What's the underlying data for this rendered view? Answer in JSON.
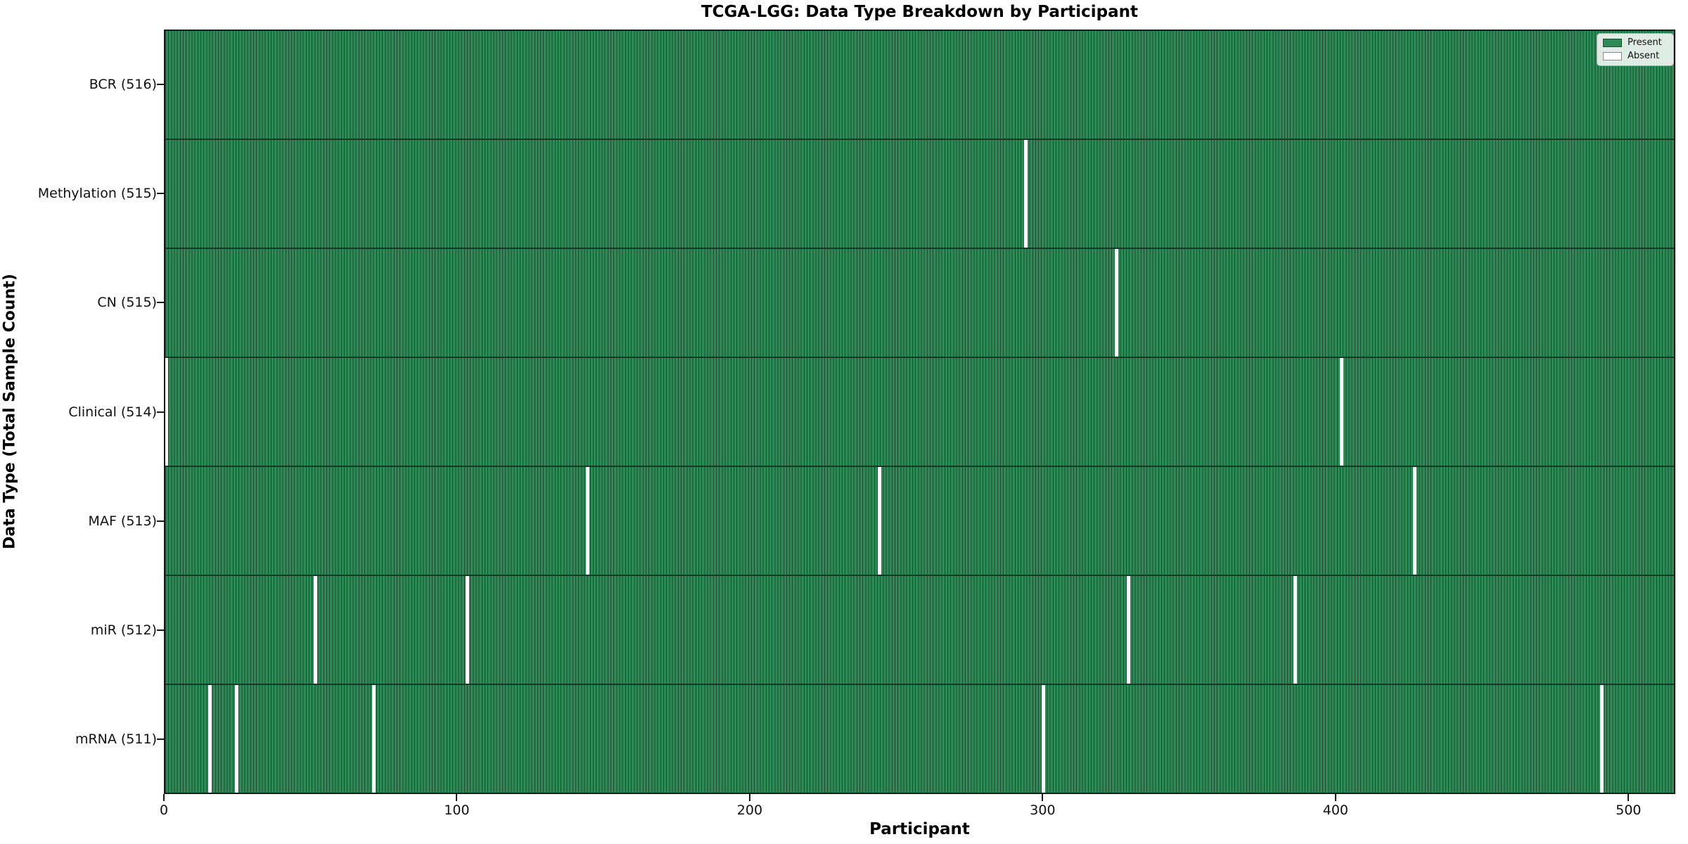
{
  "title": "TCGA-LGG: Data Type Breakdown by Participant",
  "chart_data": {
    "type": "heatmap",
    "title": "TCGA-LGG: Data Type Breakdown by Participant",
    "xlabel": "Participant",
    "ylabel": "Data Type (Total Sample Count)",
    "n_participants": 516,
    "xlim": [
      0,
      516
    ],
    "x_ticks": [
      0,
      100,
      200,
      300,
      400,
      500
    ],
    "grid": false,
    "rows": [
      {
        "data_type": "BCR",
        "label": "BCR (516)",
        "total": 516,
        "absent_participants": []
      },
      {
        "data_type": "Methylation",
        "label": "Methylation (515)",
        "total": 515,
        "absent_participants": [
          294
        ]
      },
      {
        "data_type": "CN",
        "label": "CN (515)",
        "total": 515,
        "absent_participants": [
          325
        ]
      },
      {
        "data_type": "Clinical",
        "label": "Clinical (514)",
        "total": 514,
        "absent_participants": [
          0,
          402
        ]
      },
      {
        "data_type": "MAF",
        "label": "MAF (513)",
        "total": 513,
        "absent_participants": [
          144,
          244,
          427
        ]
      },
      {
        "data_type": "miR",
        "label": "miR (512)",
        "total": 512,
        "absent_participants": [
          51,
          103,
          329,
          386
        ]
      },
      {
        "data_type": "mRNA",
        "label": "mRNA (511)",
        "total": 511,
        "absent_participants": [
          15,
          24,
          71,
          300,
          491
        ]
      }
    ],
    "legend": {
      "position": "upper right",
      "entries": [
        {
          "label": "Present",
          "color": "#2e8b57"
        },
        {
          "label": "Absent",
          "color": "#ffffff"
        }
      ]
    },
    "colors": {
      "present": "#2e8b57",
      "absent": "#ffffff",
      "bar_edge": "#1b4c2f",
      "row_divider": "#123a24",
      "axis": "#1a1a1a"
    }
  }
}
